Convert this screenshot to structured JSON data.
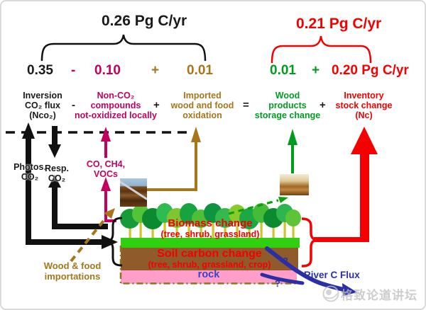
{
  "summary_left": {
    "total": "0.26 Pg C/yr",
    "term1": "0.35",
    "op1": "-",
    "term2": "0.10",
    "op2": "+",
    "term3": "0.01"
  },
  "summary_right": {
    "total": "0.21 Pg C/yr",
    "term1": "0.01",
    "op1": "+",
    "term2": "0.20 Pg C/yr"
  },
  "flux_row": {
    "inversion": [
      "Inversion",
      "CO₂ flux",
      "(Nco₂)"
    ],
    "minus": "-",
    "non_co2": [
      "Non-CO₂",
      "compounds",
      "not-oxidized locally"
    ],
    "plus1": "+",
    "imported": [
      "Imported",
      "wood and food",
      "oxidation"
    ],
    "equals": "=",
    "wood_products": [
      "Wood",
      "products",
      "storage change"
    ],
    "plus2": "+",
    "inventory": [
      "Inventory",
      "stock change",
      "(Nc)"
    ]
  },
  "gas_arrows": {
    "photos": [
      "Photos.",
      "CO₂"
    ],
    "resp": [
      "Resp.",
      "CO₂"
    ],
    "co_ch4": [
      "CO, CH4,",
      "VOCs"
    ]
  },
  "imports": [
    "Wood & food",
    "importations"
  ],
  "land": {
    "biomass_title": "Biomass change",
    "biomass_sub": "(tree, shrub, grassland)",
    "soil_title": "Soil carbon change",
    "soil_sub": "(tree, shrub, grassland, crop)",
    "rock": "rock"
  },
  "river": {
    "label": "River C Flux",
    "question_upper": "?",
    "question_lower": "?"
  },
  "watermark": "格致论道讲坛",
  "colors": {
    "black": "#1a1a1a",
    "magenta": "#c4005f",
    "goldenrod": "#a5761a",
    "green": "#009c22",
    "red": "#f40000",
    "river_blue": "#2b2fa6",
    "rock_text": "#4040c4",
    "soil": "#8f5b2b",
    "rock_band": "#ff9fc9",
    "grass": "#2fd10f"
  }
}
